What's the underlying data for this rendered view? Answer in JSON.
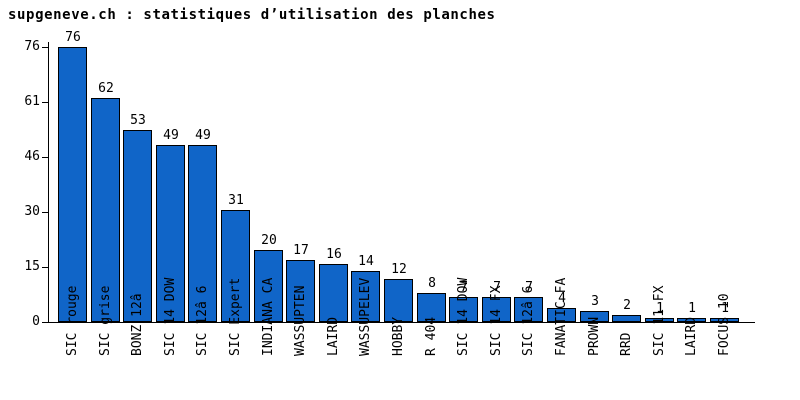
{
  "chart_data": {
    "type": "bar",
    "title": "supgeneve.ch : statistiques d’utilisation des planches",
    "xlabel": "",
    "ylabel": "",
    "categories": [
      "SIC rouge",
      "SIC grise",
      "BONZ 12â",
      "SIC 14 DOW",
      "SIC 12â 6",
      "SIC Expert",
      "INDIANA CA",
      "WASSUPTEN",
      "LAIRD",
      "WASSUPELEV",
      "HOBBY",
      "R 404",
      "SIC 14 DOW",
      "SIC 14 FX",
      "SIC 12â 6",
      "FANATIC FA",
      "PROWN",
      "RRD",
      "SIC 11 FX",
      "LAIRD",
      "FOCUS 10"
    ],
    "values": [
      76,
      62,
      53,
      49,
      49,
      31,
      20,
      17,
      16,
      14,
      12,
      8,
      7,
      7,
      7,
      4,
      3,
      2,
      1,
      1,
      1
    ],
    "y_ticks": [
      0,
      15,
      30,
      46,
      61,
      76
    ],
    "ylim": [
      0,
      76
    ],
    "grid": false,
    "legend": false,
    "bar_color": "#1065C8",
    "axis_color": "#000000",
    "text_color": "#000000",
    "background_color": "#ffffff"
  }
}
